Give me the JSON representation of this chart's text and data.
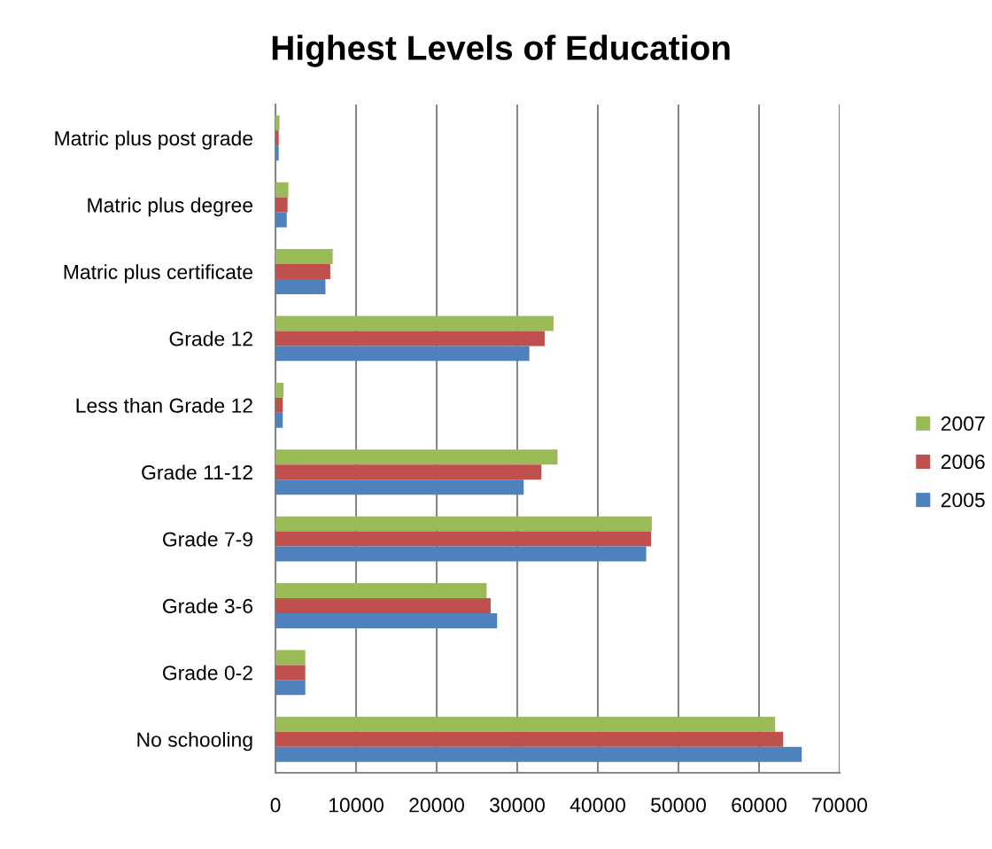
{
  "chart_data": {
    "type": "bar",
    "orientation": "horizontal",
    "title": "Highest Levels of Education",
    "categories": [
      "Matric plus post grade",
      "Matric plus degree",
      "Matric plus certificate",
      "Grade 12",
      "Less than Grade 12",
      "Grade 11-12",
      "Grade 7-9",
      "Grade 3-6",
      "Grade 0-2",
      "No schooling"
    ],
    "series": [
      {
        "name": "2007",
        "color": "#9bbb59",
        "values": [
          500,
          1600,
          7100,
          34500,
          1000,
          35000,
          46700,
          26200,
          3700,
          62000
        ]
      },
      {
        "name": "2006",
        "color": "#c0504d",
        "values": [
          400,
          1500,
          6800,
          33400,
          900,
          33000,
          46600,
          26700,
          3700,
          63000
        ]
      },
      {
        "name": "2005",
        "color": "#4f81bd",
        "values": [
          400,
          1400,
          6200,
          31500,
          900,
          30800,
          46000,
          27500,
          3700,
          65300
        ]
      }
    ],
    "xlim": [
      0,
      70000
    ],
    "xticks": [
      0,
      10000,
      20000,
      30000,
      40000,
      50000,
      60000,
      70000
    ],
    "grid": "x",
    "legend": "right"
  }
}
